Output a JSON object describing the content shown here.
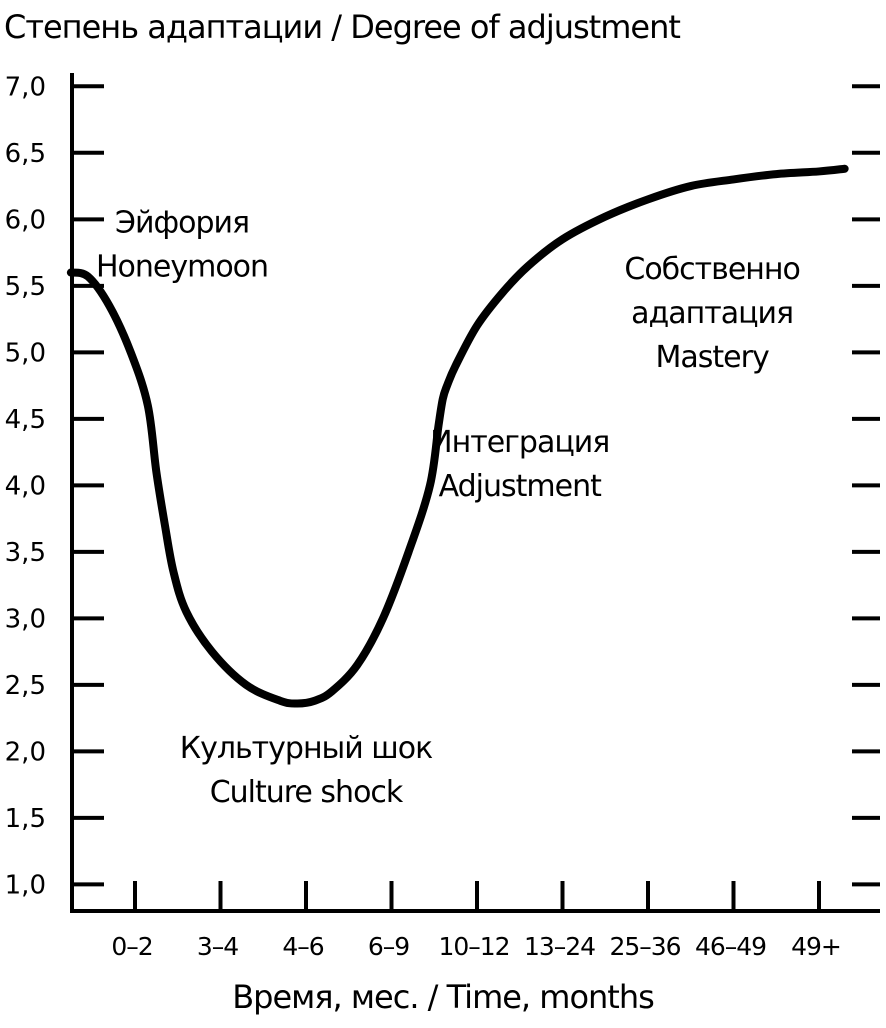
{
  "chart_data": {
    "type": "line",
    "title": "Степень адаптации / Degree of adjustment",
    "xlabel": "Время, мес. / Time, months",
    "ylabel": "",
    "categories": [
      "0–2",
      "3–4",
      "4–6",
      "6–9",
      "10–12",
      "13–24",
      "25–36",
      "46–49",
      "49+"
    ],
    "yticks": [
      "1,0",
      "1,5",
      "2,0",
      "2,5",
      "3,0",
      "3,5",
      "4,0",
      "4,5",
      "5,0",
      "5,5",
      "6,0",
      "6,5",
      "7,0"
    ],
    "ylim": [
      0.8,
      7.1
    ],
    "xlim": [
      -0.75,
      8.3
    ],
    "grid": false,
    "series": [
      {
        "x": [
          -0.75,
          -0.55,
          -0.3,
          -0.05,
          0.15,
          0.25,
          0.35,
          0.45,
          0.6,
          0.9,
          1.3,
          1.7,
          1.9,
          2.1,
          2.3,
          2.6,
          2.9,
          3.2,
          3.45,
          3.55,
          3.6,
          3.65,
          3.75,
          4.0,
          4.3,
          4.6,
          5.0,
          5.5,
          6.0,
          6.5,
          7.0,
          7.5,
          8.0,
          8.3
        ],
        "y": [
          5.6,
          5.57,
          5.35,
          5.0,
          4.6,
          4.1,
          3.7,
          3.35,
          3.05,
          2.75,
          2.5,
          2.38,
          2.36,
          2.38,
          2.45,
          2.65,
          3.0,
          3.5,
          4.0,
          4.45,
          4.65,
          4.75,
          4.9,
          5.2,
          5.45,
          5.65,
          5.85,
          6.02,
          6.15,
          6.25,
          6.3,
          6.34,
          6.36,
          6.38
        ]
      }
    ],
    "annotations": [
      {
        "lines": [
          "Эйфория",
          "Honeymoon"
        ],
        "x": 0.55,
        "y": 5.9
      },
      {
        "lines": [
          "Культурный шок",
          "Culture shock"
        ],
        "x": 2.0,
        "y": 1.95
      },
      {
        "lines": [
          "Интеграция",
          "Adjustment"
        ],
        "x": 4.5,
        "y": 4.25
      },
      {
        "lines": [
          "Собственно",
          "адаптация",
          "Mastery"
        ],
        "x": 6.75,
        "y": 5.55
      }
    ]
  }
}
